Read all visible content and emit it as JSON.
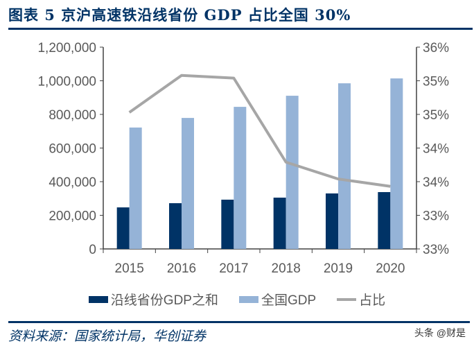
{
  "title": "图表 5 京沪高速铁沿线省份 GDP 占比全国 30%",
  "source": "资料来源：国家统计局，华创证券",
  "watermark": "头条 @财是",
  "chart_data": {
    "type": "bar+line",
    "title": "",
    "categories": [
      "2015",
      "2016",
      "2017",
      "2018",
      "2019",
      "2020"
    ],
    "series": [
      {
        "name": "沿线省份GDP之和",
        "type": "bar",
        "axis": "left",
        "color": "#003366",
        "values": [
          247000,
          272000,
          293000,
          305000,
          330000,
          338000
        ]
      },
      {
        "name": "全国GDP",
        "type": "bar",
        "axis": "left",
        "color": "#95B3D7",
        "values": [
          722000,
          779000,
          845000,
          911000,
          985000,
          1014000
        ]
      },
      {
        "name": "占比",
        "type": "line",
        "axis": "right",
        "color": "#A6A6A6",
        "values": [
          35.03,
          35.58,
          35.54,
          34.29,
          34.04,
          33.93
        ]
      }
    ],
    "left_axis": {
      "ylim": [
        0,
        1200000
      ],
      "tick_labels": [
        "0",
        "200,000",
        "400,000",
        "600,000",
        "800,000",
        "1,000,000",
        "1,200,000"
      ]
    },
    "right_axis": {
      "ylim": [
        33,
        36
      ],
      "tick_labels": [
        "33%",
        "33%",
        "34%",
        "34%",
        "35%",
        "35%",
        "36%"
      ]
    },
    "grid": false,
    "legend": "bottom"
  }
}
